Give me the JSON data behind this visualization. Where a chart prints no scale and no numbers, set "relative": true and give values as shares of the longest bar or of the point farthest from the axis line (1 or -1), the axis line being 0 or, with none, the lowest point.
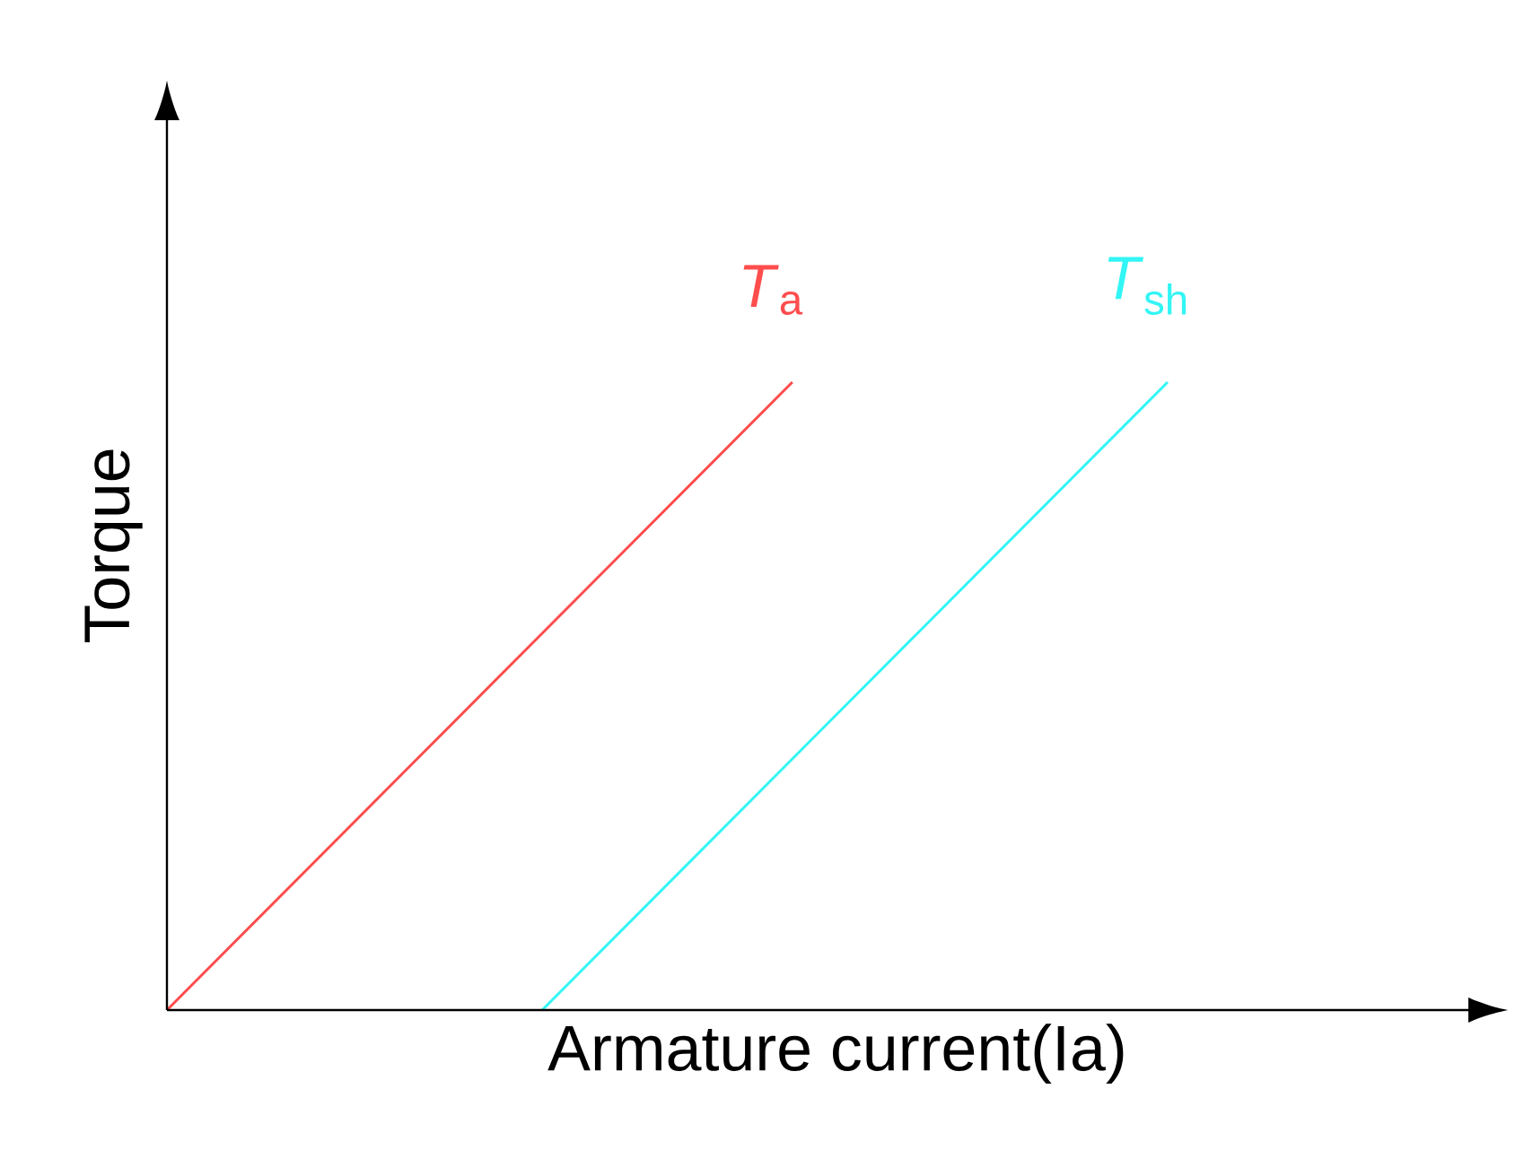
{
  "chart_data": {
    "type": "line",
    "relative": true,
    "xlabel": "Armature current(Ia)",
    "ylabel": "Torque",
    "categories": [
      null,
      null,
      null,
      null,
      null,
      null,
      null,
      null,
      null
    ],
    "series": [
      {
        "name": "*T*$_{a}$",
        "color": "#ff4d4d",
        "values": [
          0,
          0.2,
          0.4,
          0.6,
          0.8,
          1,
          null,
          null,
          null
        ]
      },
      {
        "name": "*T*$_{sh}$",
        "color": "#33f5f5",
        "values": [
          null,
          null,
          null,
          0,
          0.2,
          0.4,
          0.6,
          0.8,
          1
        ]
      }
    ]
  }
}
